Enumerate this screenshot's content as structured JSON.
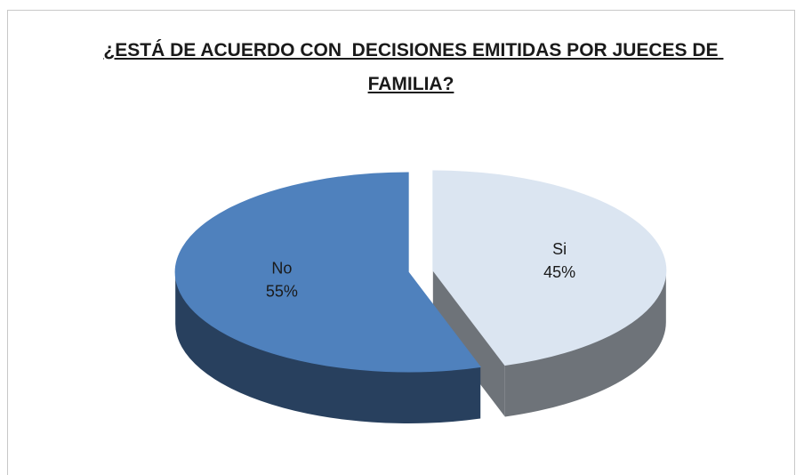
{
  "chart_data": {
    "type": "pie3d",
    "title": "¿ESTÁ DE ACUERDO CON  DECISIONES EMITIDAS POR JUECES DE FAMILIA?",
    "categories": [
      "Si",
      "No"
    ],
    "values": [
      45,
      55
    ],
    "value_labels": [
      "45%",
      "55%"
    ],
    "colors": [
      "#dbe5f1",
      "#4f81bd"
    ]
  }
}
